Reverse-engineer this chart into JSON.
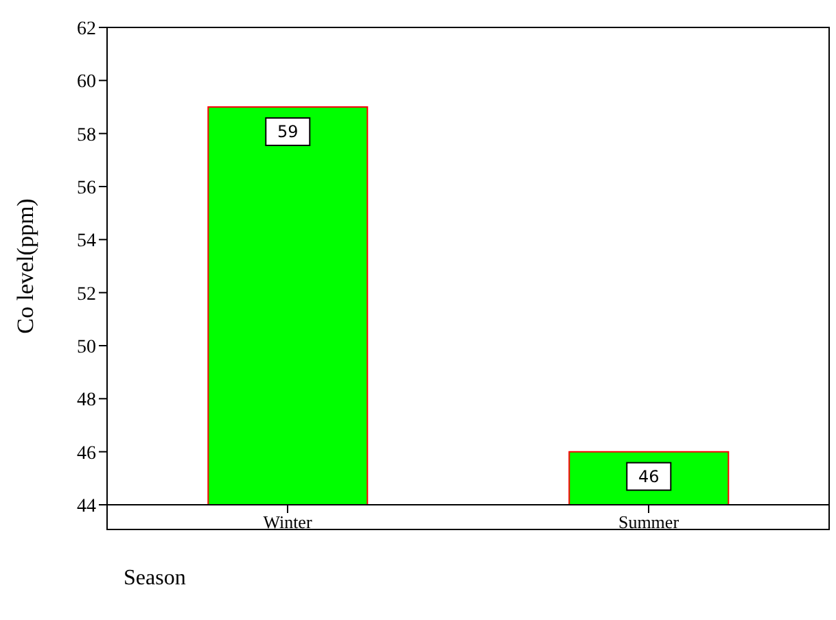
{
  "chart_data": {
    "type": "bar",
    "categories": [
      "Winter",
      "Summer"
    ],
    "values": [
      59,
      46
    ],
    "color": "#00ff00",
    "xlabel": "Season",
    "ylabel": "Co level(ppm)",
    "ylim": [
      44,
      62
    ],
    "yticks": [
      44,
      46,
      48,
      50,
      52,
      54,
      56,
      58,
      60,
      62
    ],
    "data_labels": true,
    "grid": false,
    "legend": false
  }
}
